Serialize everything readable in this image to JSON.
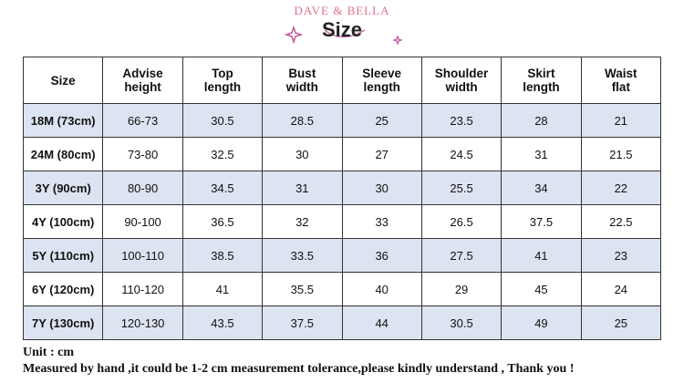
{
  "header": {
    "brand": "DAVE & BELLA",
    "title": "Size"
  },
  "table": {
    "columns": [
      "Size",
      "Advise\nheight",
      "Top\nlength",
      "Bust\nwidth",
      "Sleeve\nlength",
      "Shoulder\nwidth",
      "Skirt\nlength",
      "Waist\nflat"
    ],
    "rows": [
      [
        "18M (73cm)",
        "66-73",
        "30.5",
        "28.5",
        "25",
        "23.5",
        "28",
        "21"
      ],
      [
        "24M (80cm)",
        "73-80",
        "32.5",
        "30",
        "27",
        "24.5",
        "31",
        "21.5"
      ],
      [
        "3Y (90cm)",
        "80-90",
        "34.5",
        "31",
        "30",
        "25.5",
        "34",
        "22"
      ],
      [
        "4Y (100cm)",
        "90-100",
        "36.5",
        "32",
        "33",
        "26.5",
        "37.5",
        "22.5"
      ],
      [
        "5Y (110cm)",
        "100-110",
        "38.5",
        "33.5",
        "36",
        "27.5",
        "41",
        "23"
      ],
      [
        "6Y (120cm)",
        "110-120",
        "41",
        "35.5",
        "40",
        "29",
        "45",
        "24"
      ],
      [
        "7Y (130cm)",
        "120-130",
        "43.5",
        "37.5",
        "44",
        "30.5",
        "49",
        "25"
      ]
    ]
  },
  "footer": {
    "unit": "Unit : cm",
    "note": "Measured by hand ,it could be 1-2 cm measurement tolerance,please kindly understand , Thank you !"
  }
}
